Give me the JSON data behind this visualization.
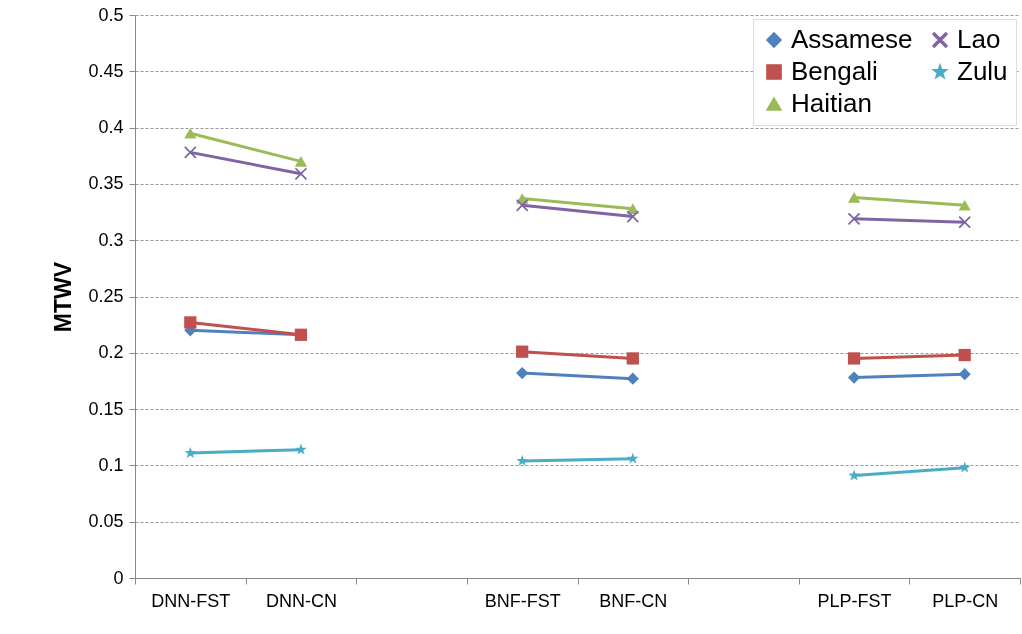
{
  "chart_data": {
    "type": "line",
    "ylabel": "MTWV",
    "categories": [
      "DNN-FST",
      "DNN-CN",
      null,
      "BNF-FST",
      "BNF-CN",
      null,
      "PLP-FST",
      "PLP-CN"
    ],
    "series": [
      {
        "name": "Assamese",
        "color": "#4f81bd",
        "marker": "diamond",
        "values": [
          0.22,
          0.216,
          null,
          0.182,
          0.177,
          null,
          0.178,
          0.181
        ]
      },
      {
        "name": "Bengali",
        "color": "#c0504d",
        "marker": "square",
        "values": [
          0.227,
          0.216,
          null,
          0.201,
          0.195,
          null,
          0.195,
          0.198
        ]
      },
      {
        "name": "Haitian",
        "color": "#9bbb59",
        "marker": "triangle",
        "values": [
          0.395,
          0.37,
          null,
          0.337,
          0.328,
          null,
          0.338,
          0.331
        ]
      },
      {
        "name": "Lao",
        "color": "#8064a2",
        "marker": "cross",
        "values": [
          0.378,
          0.359,
          null,
          0.331,
          0.321,
          null,
          0.319,
          0.316
        ]
      },
      {
        "name": "Zulu",
        "color": "#4bacc6",
        "marker": "star",
        "values": [
          0.111,
          0.114,
          null,
          0.104,
          0.106,
          null,
          0.091,
          0.098
        ]
      }
    ],
    "ylim": [
      0,
      0.5
    ],
    "yticks": [
      0,
      0.05,
      0.1,
      0.15,
      0.2,
      0.25,
      0.3,
      0.35,
      0.4,
      0.45,
      0.5
    ],
    "grid": "y",
    "legend": "top right"
  }
}
